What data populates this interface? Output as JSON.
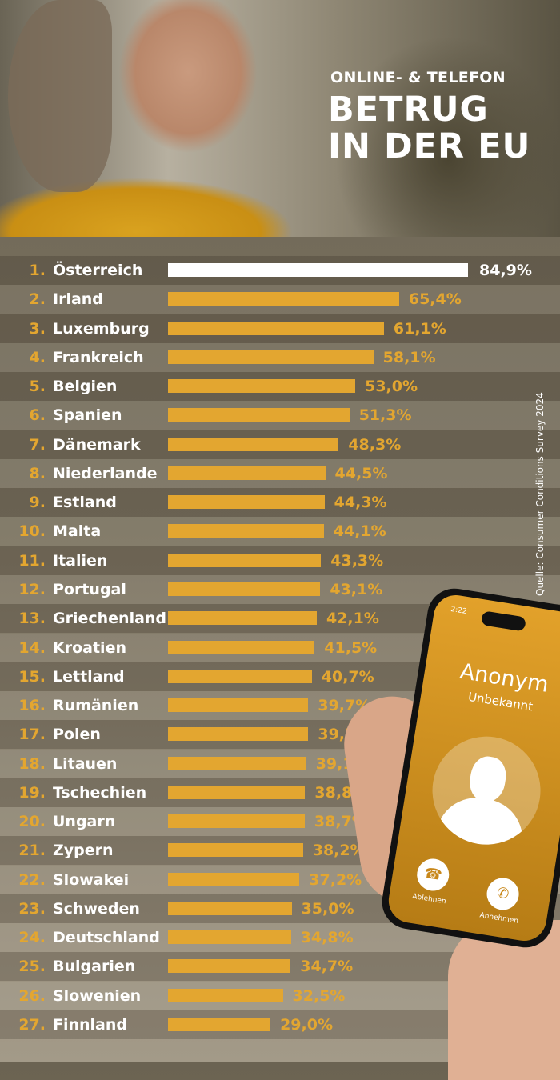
{
  "header": {
    "subtitle": "ONLINE- & TELEFON",
    "title_line1": "BETRUG",
    "title_line2": "IN DER EU"
  },
  "source": "Quelle: Consumer Conditions Survey 2024",
  "phone": {
    "time": "2:22",
    "caller": "Anonym",
    "caller_sub": "Unbekannt",
    "decline_label": "Ablehnen",
    "accept_label": "Annehmen"
  },
  "colors": {
    "bar": "#e3a630",
    "highlight_bar": "#ffffff",
    "rank": "#e3a630",
    "background": "#6b6352"
  },
  "chart_data": {
    "type": "bar",
    "orientation": "horizontal",
    "unit": "%",
    "categories": [
      "Österreich",
      "Irland",
      "Luxemburg",
      "Frankreich",
      "Belgien",
      "Spanien",
      "Dänemark",
      "Niederlande",
      "Estland",
      "Malta",
      "Italien",
      "Portugal",
      "Griechenland",
      "Kroatien",
      "Lettland",
      "Rumänien",
      "Polen",
      "Litauen",
      "Tschechien",
      "Ungarn",
      "Zypern",
      "Slowakei",
      "Schweden",
      "Deutschland",
      "Bulgarien",
      "Slowenien",
      "Finnland"
    ],
    "ranks": [
      "1.",
      "2.",
      "3.",
      "4.",
      "5.",
      "6.",
      "7.",
      "8.",
      "9.",
      "10.",
      "11.",
      "12.",
      "13.",
      "14.",
      "15.",
      "16.",
      "17.",
      "18.",
      "19.",
      "20.",
      "21.",
      "22.",
      "23.",
      "24.",
      "25.",
      "26.",
      "27."
    ],
    "values": [
      84.9,
      65.4,
      61.1,
      58.1,
      53.0,
      51.3,
      48.3,
      44.5,
      44.3,
      44.1,
      43.3,
      43.1,
      42.1,
      41.5,
      40.7,
      39.7,
      39.7,
      39.1,
      38.8,
      38.7,
      38.2,
      37.2,
      35.0,
      34.8,
      34.7,
      32.5,
      29.0
    ],
    "labels": [
      "84,9%",
      "65,4%",
      "61,1%",
      "58,1%",
      "53,0%",
      "51,3%",
      "48,3%",
      "44,5%",
      "44,3%",
      "44,1%",
      "43,3%",
      "43,1%",
      "42,1%",
      "41,5%",
      "40,7%",
      "39,7%",
      "39,7%",
      "39,1%",
      "38,8%",
      "38,7%",
      "38,2%",
      "37,2%",
      "35,0%",
      "34,8%",
      "34,7%",
      "32,5%",
      "29,0%"
    ],
    "highlighted": "Österreich",
    "grid": false
  }
}
